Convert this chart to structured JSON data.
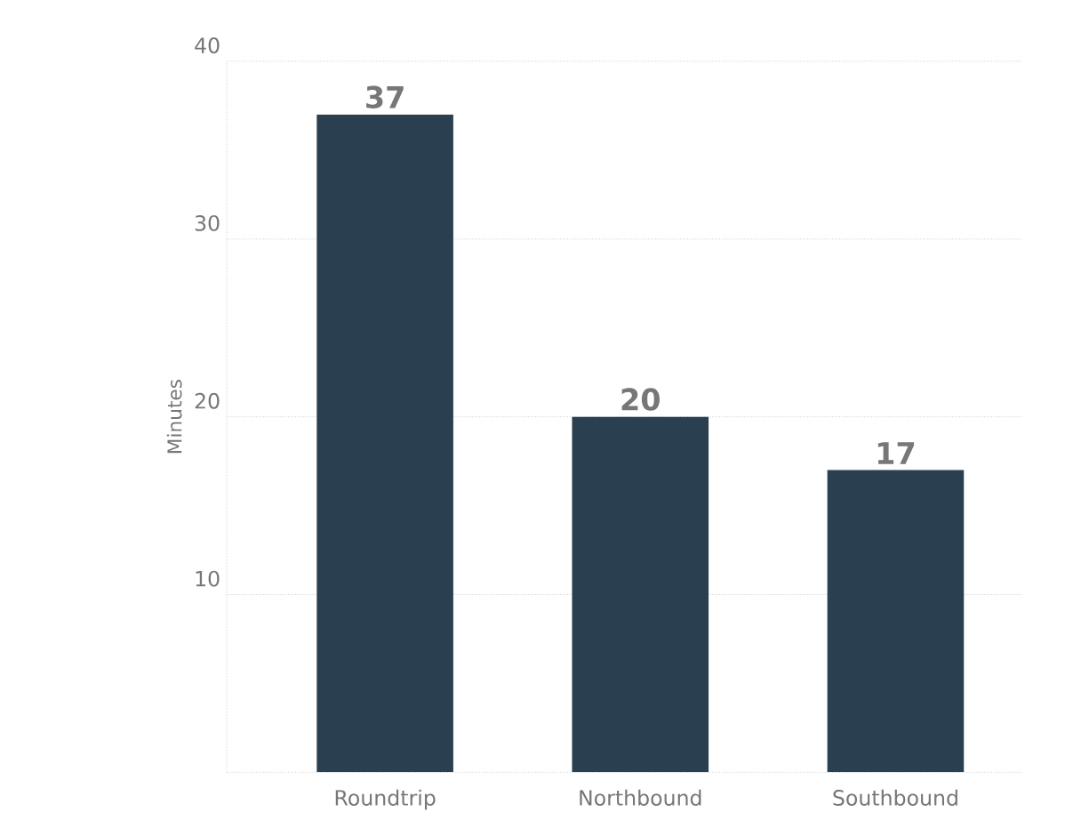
{
  "chart_data": {
    "type": "bar",
    "ylabel": "Minutes",
    "categories": [
      "Roundtrip",
      "Northbound",
      "Southbound"
    ],
    "values": [
      37,
      20,
      17
    ],
    "color": "#2a3f50",
    "ylim": [
      0,
      40
    ],
    "yticks": [
      10,
      20,
      30,
      40
    ],
    "grid": "y",
    "data_labels": true
  }
}
